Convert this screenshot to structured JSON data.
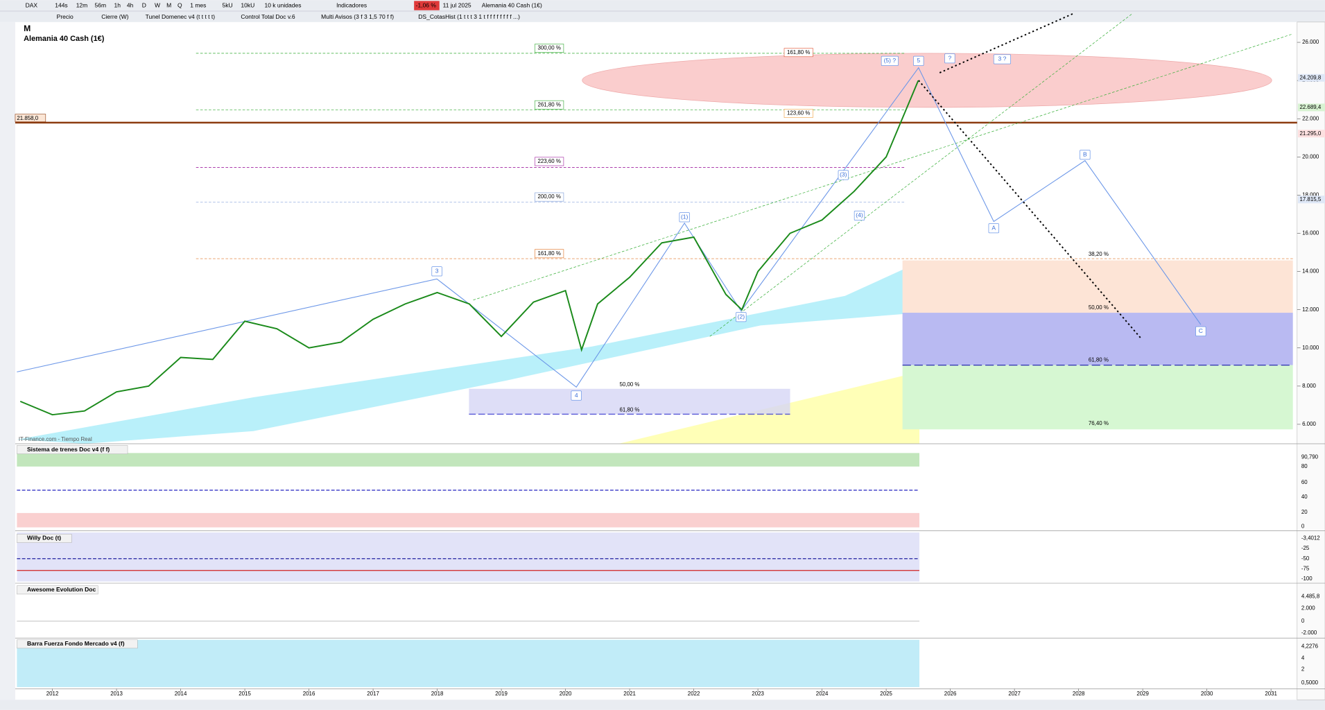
{
  "toolbar": {
    "row1": [
      "DAX",
      "144s",
      "12m",
      "56m",
      "1h",
      "4h",
      "D",
      "W",
      "M",
      "Q",
      "1 mes",
      "5kU",
      "10kU",
      "10 k unidades",
      "Indicadores",
      "-1,06 %",
      "11 jul 2025",
      "Alemania 40 Cash (1€)"
    ],
    "row2": [
      "Precio",
      "Cierre (W)",
      "Tunel Domenec v4 (t t t t t)",
      "Control Total Doc v.6",
      "Multi Avisos (3 f 3 1,5 70 f f)",
      "DS_CotasHist (1 t t t 3 1 t f f f f f f f f ...)"
    ]
  },
  "chart": {
    "period": "M",
    "instrument": "Alemania 40 Cash (1€)",
    "source": "IT-Finance.com - Tiempo Real",
    "level_label": "21.858,0",
    "yticks": [
      {
        "value": 6000,
        "label": "6.000"
      },
      {
        "value": 8000,
        "label": "8.000"
      },
      {
        "value": 10000,
        "label": "10.000"
      },
      {
        "value": 12000,
        "label": "12.000"
      },
      {
        "value": 14000,
        "label": "14.000"
      },
      {
        "value": 16000,
        "label": "16.000"
      },
      {
        "value": 18000,
        "label": "18.000"
      },
      {
        "value": 20000,
        "label": "20.000"
      },
      {
        "value": 22000,
        "label": "22.000"
      },
      {
        "value": 24000,
        "label": "24.000"
      },
      {
        "value": 26000,
        "label": "26.000"
      }
    ],
    "ylim": [
      6000,
      26000
    ],
    "xticks": [
      2012,
      2013,
      2014,
      2015,
      2016,
      2017,
      2018,
      2019,
      2020,
      2021,
      2022,
      2023,
      2024,
      2025,
      2026,
      2027,
      2028,
      2029,
      2030,
      2031
    ],
    "price": {
      "x": [
        2011.5,
        2012,
        2012.5,
        2013,
        2013.5,
        2014,
        2014.5,
        2015,
        2015.5,
        2016,
        2016.5,
        2017,
        2017.5,
        2018,
        2018.5,
        2019,
        2019.5,
        2020,
        2020.25,
        2020.5,
        2021,
        2021.5,
        2022,
        2022.5,
        2022.75,
        2023,
        2023.5,
        2024,
        2024.5,
        2025,
        2025.5
      ],
      "values": [
        7200,
        6500,
        6700,
        7700,
        8000,
        9500,
        9400,
        11400,
        11000,
        10000,
        10300,
        11500,
        12300,
        12900,
        12300,
        10600,
        12400,
        13000,
        9900,
        12300,
        13700,
        15500,
        15800,
        12800,
        12000,
        14000,
        16000,
        16700,
        18200,
        20000,
        24000
      ]
    },
    "right_labels": [
      "24.209,8",
      "22.689,4",
      "21.295,0",
      "17.815,5"
    ],
    "waves": [
      "3",
      "4",
      "(1)",
      "(2)",
      "(3)",
      "(4)",
      "(5) ?",
      "5",
      "?",
      "3 ?",
      "A",
      "B",
      "C"
    ],
    "fib_labels": [
      "300,00 %",
      "261,80 %",
      "223,60 %",
      "200,00 %",
      "161,80 %",
      "161,80 %",
      "123,60 %",
      "50,00 %",
      "61,80 %",
      "38,20 %",
      "50,00 %",
      "61,80 %",
      "76,40 %"
    ]
  },
  "panels": [
    {
      "title": "Sistema de trenes Doc v4 (f f)",
      "ticks": [
        "90,790",
        "80",
        "60",
        "40",
        "20",
        "0"
      ]
    },
    {
      "title": "Willy Doc (t)",
      "ticks": [
        "-3,4012",
        "-25",
        "-50",
        "-75",
        "-100"
      ]
    },
    {
      "title": "Awesome Evolution Doc",
      "ticks": [
        "4.485,8",
        "2.000",
        "0",
        "-2.000"
      ]
    },
    {
      "title": "Barra Fuerza Fondo Mercado v4 (f)",
      "ticks": [
        "4,2276",
        "4",
        "2",
        "0,5000"
      ]
    }
  ]
}
